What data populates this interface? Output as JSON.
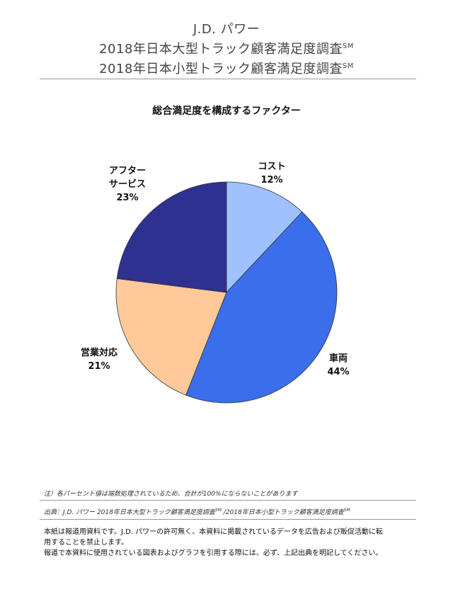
{
  "header": {
    "company": "J.D. パワー",
    "survey_large": "2018年日本大型トラック顧客満足度調査",
    "survey_small": "2018年日本小型トラック顧客満足度調査",
    "sm_mark": "SM"
  },
  "chart_data": {
    "type": "pie",
    "title": "総合満足度を構成するファクター",
    "slices": [
      {
        "label": "コスト",
        "value": 12,
        "value_label": "12%",
        "color": "#9fc2ff"
      },
      {
        "label": "車両",
        "value": 44,
        "value_label": "44%",
        "color": "#3a6eea"
      },
      {
        "label": "営業対応",
        "value": 21,
        "value_label": "21%",
        "color": "#ffc99a"
      },
      {
        "label": "アフターサービス",
        "label_lines": [
          "アフター",
          "サービス"
        ],
        "value": 23,
        "value_label": "23%",
        "color": "#2e3190"
      }
    ]
  },
  "notes": {
    "note1": "注）各パーセント値は端数処理されているため、合計が100%にならないことがあります",
    "source_prefix": "出典：J.D. パワー 2018年日本大型トラック顧客満足度調査",
    "source_middle": " /2018年日本小型トラック顧客満足度調査",
    "sm_mark": "SM"
  },
  "footer": {
    "line1": "本紙は報道用資料です。J.D. パワーの許可無く、本資料に掲載されているデータを広告および販促活動に転",
    "line2": "用することを禁止します。",
    "line3": "報道で本資料に使用されている図表およびグラフを引用する際には、必ず、上記出典を明記してください。"
  }
}
